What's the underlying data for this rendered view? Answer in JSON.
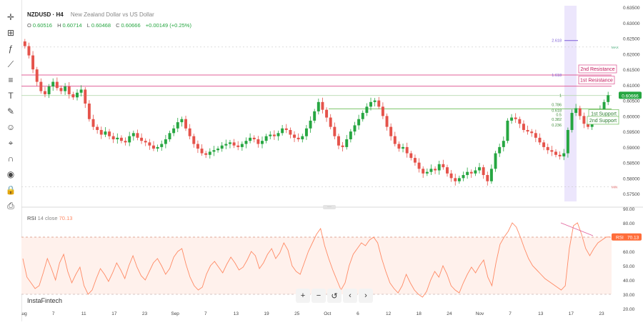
{
  "header": {
    "symbol": "NZDUSD · H4",
    "description": "New Zealand Dollar vs US Dollar"
  },
  "ohlc": {
    "o_label": "O",
    "o_value": "0.60516",
    "h_label": "H",
    "h_value": "0.60714",
    "l_label": "L",
    "l_value": "0.60468",
    "c_label": "C",
    "c_value": "0.60666",
    "change": "+0.00149 (+0.25%)"
  },
  "rsi": {
    "label": "RSI",
    "params": "14 close",
    "value": "70.13",
    "badge": "RSI",
    "badge_value": "70.13"
  },
  "logo": "InstaFintech",
  "price_badge": "0.60666",
  "annotations": {
    "second_resistance": "2nd Resistance",
    "first_resistance": "1st Resistance",
    "first_support": "1st Support",
    "second_support": "2nd Support"
  },
  "fib_labels": [
    "2.618",
    "1.618",
    "1",
    "0.786",
    "0.618",
    "0.5",
    "0.382",
    "0.236"
  ],
  "fib_side": {
    "top": "MAX",
    "bottom": "MIN"
  },
  "toolbar": {
    "icons": [
      "cursor-icon",
      "candles-icon",
      "indicators-icon",
      "drawing-icon",
      "fib-icon",
      "text-icon",
      "brush-icon",
      "emoji-icon",
      "ruler-icon",
      "magnet-icon",
      "eye-icon",
      "lock-icon",
      "screenshot-icon"
    ]
  },
  "nav": {
    "zoom_in": "+",
    "zoom_out": "−",
    "reset": "↺",
    "back": "‹",
    "forward": "›"
  },
  "colors": {
    "up": "#26a641",
    "down": "#e5534b",
    "rsi": "#ff8a65",
    "resistance": "#e0609a",
    "support": "#7cc46a",
    "fib_band": "#c9b6f5"
  },
  "chart_data": [
    {
      "type": "candlestick",
      "title": "NZDUSD · H4",
      "x_ticks": [
        "Aug",
        "7",
        "11",
        "17",
        "23",
        "Sep",
        "7",
        "13",
        "19",
        "25",
        "Oct",
        "6",
        "12",
        "18",
        "24",
        "Nov",
        "7",
        "13",
        "17",
        "23"
      ],
      "y_ticks": [
        "0.63500",
        "0.63000",
        "0.62500",
        "0.62000",
        "0.61500",
        "0.61000",
        "0.60500",
        "0.60000",
        "0.59500",
        "0.59000",
        "0.58500",
        "0.58000",
        "0.57500"
      ],
      "ylim": [
        0.5725,
        0.6355
      ],
      "last_price": 0.60666,
      "levels": {
        "second_resistance": 0.6132,
        "first_resistance": 0.6096,
        "first_support": 0.6023,
        "second_support": 0.5985,
        "fib_1": 0.6066,
        "fib_0": 0.5941,
        "fib_1618": 0.6132,
        "fib_2618": 0.6243
      },
      "series": [
        {
          "close": [
            0.6225,
            0.6195,
            0.615,
            0.611,
            0.608,
            0.607,
            0.6095,
            0.611,
            0.609,
            0.608,
            0.6095,
            0.607,
            0.606,
            0.6075,
            0.6085,
            0.604,
            0.599,
            0.5965,
            0.5955,
            0.594,
            0.595,
            0.5935,
            0.5925,
            0.593,
            0.592,
            0.5915,
            0.5935,
            0.5945,
            0.593,
            0.592,
            0.5915,
            0.5905,
            0.5895,
            0.59,
            0.591,
            0.5925,
            0.5945,
            0.596,
            0.598,
            0.599,
            0.596,
            0.5935,
            0.591,
            0.5895,
            0.588,
            0.5875,
            0.5885,
            0.589,
            0.5895,
            0.5905,
            0.591,
            0.5915,
            0.5905,
            0.59,
            0.591,
            0.592,
            0.593,
            0.5925,
            0.591,
            0.592,
            0.5935,
            0.594,
            0.5935,
            0.5945,
            0.596,
            0.5955,
            0.594,
            0.593,
            0.5925,
            0.5935,
            0.596,
            0.5985,
            0.6015,
            0.6045,
            0.602,
            0.5995,
            0.5965,
            0.5935,
            0.5905,
            0.59,
            0.5925,
            0.595,
            0.597,
            0.599,
            0.601,
            0.603,
            0.6045,
            0.605,
            0.603,
            0.6,
            0.5965,
            0.5935,
            0.591,
            0.5895,
            0.59,
            0.588,
            0.5865,
            0.585,
            0.583,
            0.5815,
            0.582,
            0.583,
            0.5825,
            0.5845,
            0.5835,
            0.5815,
            0.58,
            0.579,
            0.58,
            0.581,
            0.582,
            0.5815,
            0.5825,
            0.5835,
            0.581,
            0.579,
            0.583,
            0.588,
            0.59,
            0.592,
            0.5985,
            0.5995,
            0.599,
            0.5975,
            0.5955,
            0.595,
            0.5945,
            0.593,
            0.5915,
            0.59,
            0.589,
            0.5885,
            0.5875,
            0.587,
            0.588,
            0.5955,
            0.601,
            0.6025,
            0.6,
            0.5975,
            0.5965,
            0.5985,
            0.6,
            0.602,
            0.6045,
            0.6067
          ]
        }
      ]
    },
    {
      "type": "line",
      "title": "RSI 14 close",
      "y_ticks": [
        "90.00",
        "80.00",
        "70.00",
        "60.00",
        "50.00",
        "40.00",
        "30.00",
        "20.00"
      ],
      "ylim": [
        20,
        90
      ],
      "overbought": 70,
      "oversold": 30,
      "last_value": 70.13,
      "series": [
        {
          "name": "RSI",
          "values": [
            55,
            42,
            38,
            34,
            36,
            45,
            55,
            48,
            40,
            52,
            58,
            46,
            38,
            44,
            49,
            36,
            30,
            33,
            41,
            48,
            44,
            39,
            45,
            52,
            47,
            41,
            50,
            57,
            49,
            43,
            40,
            46,
            52,
            55,
            50,
            44,
            48,
            56,
            60,
            62,
            51,
            42,
            36,
            33,
            35,
            44,
            50,
            53,
            49,
            45,
            51,
            56,
            52,
            47,
            49,
            54,
            60,
            57,
            48,
            52,
            58,
            62,
            55,
            59,
            66,
            61,
            50,
            46,
            44,
            52,
            60,
            66,
            72,
            76,
            64,
            55,
            47,
            40,
            33,
            38,
            50,
            58,
            62,
            66,
            64,
            68,
            70,
            66,
            55,
            46,
            38,
            34,
            31,
            36,
            44,
            38,
            33,
            30,
            28,
            32,
            40,
            46,
            42,
            50,
            44,
            36,
            33,
            31,
            38,
            44,
            49,
            45,
            50,
            54,
            42,
            36,
            52,
            65,
            70,
            74,
            80,
            77,
            70,
            62,
            55,
            50,
            47,
            44,
            41,
            39,
            37,
            35,
            33,
            36,
            62,
            78,
            80,
            72,
            62,
            57,
            62,
            66,
            68,
            70,
            70.13
          ]
        }
      ]
    }
  ]
}
